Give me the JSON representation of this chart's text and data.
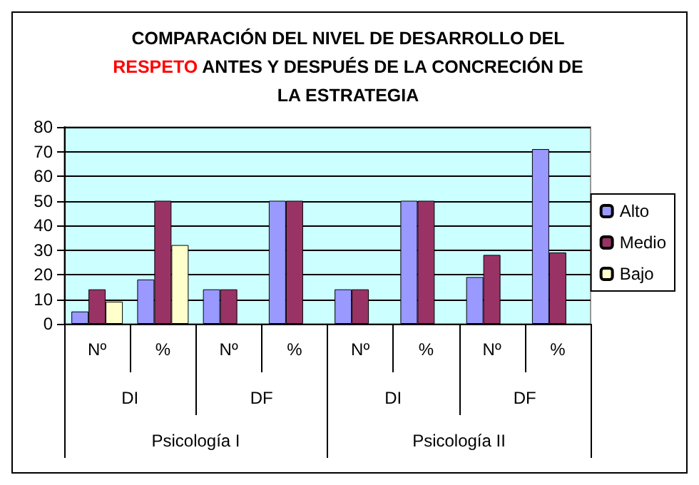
{
  "chart_data": {
    "type": "bar",
    "title": "COMPARACIÓN DEL NIVEL DE DESARROLLO DEL RESPETO ANTES Y DESPUÉS DE LA CONCRECIÓN DE LA ESTRATEGIA",
    "categories": [
      "Nº",
      "%",
      "Nº",
      "%",
      "Nº",
      "%",
      "Nº",
      "%"
    ],
    "annotations": [
      "DI",
      "DF",
      "DI",
      "DF",
      "Psicología I",
      "Psicología II"
    ],
    "series": [
      {
        "name": "Alto",
        "color": "#9999ff",
        "values": [
          5,
          18,
          14,
          50,
          14,
          50,
          19,
          71
        ]
      },
      {
        "name": "Medio",
        "color": "#993366",
        "values": [
          14,
          50,
          14,
          50,
          14,
          50,
          28,
          29
        ]
      },
      {
        "name": "Bajo",
        "color": "#ffffcc",
        "values": [
          9,
          32,
          null,
          null,
          null,
          null,
          null,
          null
        ]
      }
    ],
    "ylim": [
      0,
      80
    ],
    "yticks": [
      0,
      10,
      20,
      30,
      40,
      50,
      60,
      70,
      80
    ],
    "grid": "y",
    "legend": "right"
  }
}
